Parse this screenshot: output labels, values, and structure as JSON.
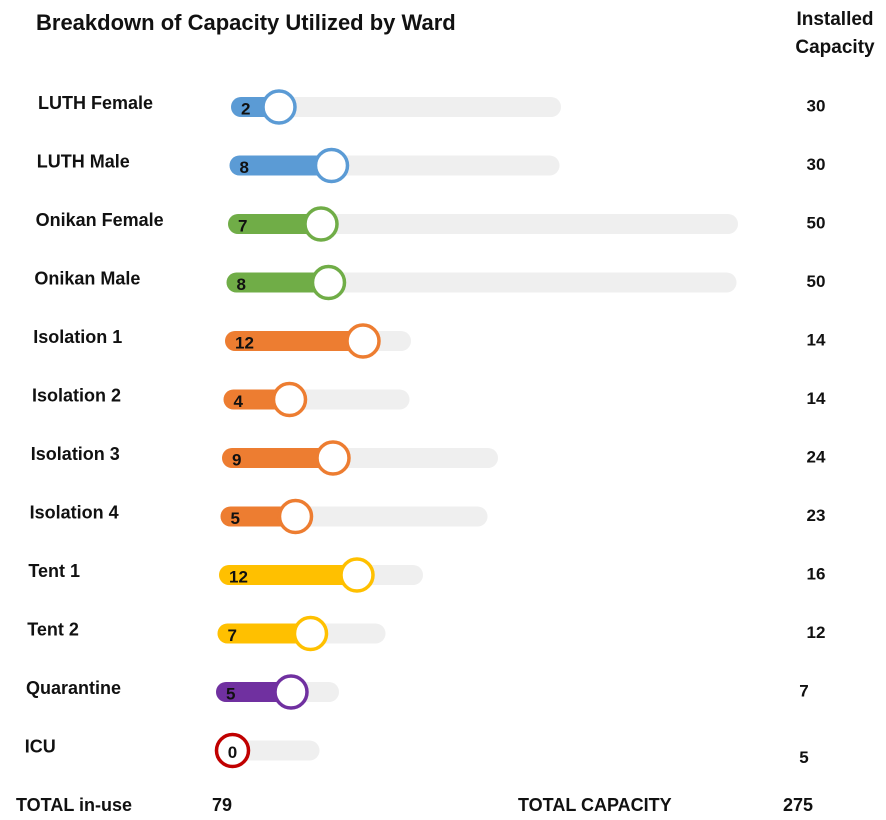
{
  "chart_data": {
    "type": "bar",
    "title": "Breakdown of Capacity Utilized by Ward",
    "capacity_header": "Installed Capacity",
    "categories": [
      "LUTH Female",
      "LUTH Male",
      "Onikan Female",
      "Onikan Male",
      "Isolation 1",
      "Isolation 2",
      "Isolation 3",
      "Isolation 4",
      "Tent 1",
      "Tent 2",
      "Quarantine",
      "ICU"
    ],
    "values": [
      2,
      8,
      7,
      8,
      12,
      4,
      9,
      5,
      12,
      7,
      5,
      0
    ],
    "capacities": [
      30,
      30,
      50,
      50,
      14,
      14,
      24,
      23,
      16,
      12,
      7,
      5
    ],
    "colors": [
      "#5b9bd5",
      "#5b9bd5",
      "#70ad47",
      "#70ad47",
      "#ed7d31",
      "#ed7d31",
      "#ed7d31",
      "#ed7d31",
      "#ffc000",
      "#ffc000",
      "#7030a0",
      "#c00000"
    ],
    "track_color": "#efefef",
    "total_in_use_label": "TOTAL in-use",
    "total_in_use": 79,
    "total_capacity_label": "TOTAL CAPACITY",
    "total_capacity": 275
  }
}
